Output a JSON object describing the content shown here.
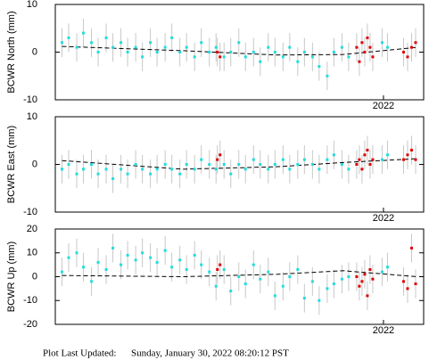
{
  "chart_data": [
    {
      "type": "scatter",
      "ylabel": "BCWR North (mm)",
      "xlim": [
        2019.55,
        2022.3
      ],
      "xticks": [
        {
          "value": 2022,
          "label": "2022"
        }
      ],
      "ylim": [
        -10,
        10
      ],
      "yticks": [
        -10,
        0,
        10
      ],
      "series": [
        {
          "color": "#22dddd",
          "error": 3,
          "x": [
            2019.6,
            2019.65,
            2019.71,
            2019.76,
            2019.82,
            2019.87,
            2019.93,
            2019.98,
            2020.04,
            2020.09,
            2020.15,
            2020.2,
            2020.26,
            2020.31,
            2020.37,
            2020.42,
            2020.48,
            2020.53,
            2020.59,
            2020.64,
            2020.7,
            2020.75,
            2020.81,
            2020.86,
            2020.92,
            2020.97,
            2021.03,
            2021.08,
            2021.14,
            2021.19,
            2021.25,
            2021.3,
            2021.36,
            2021.41,
            2021.47,
            2021.52,
            2021.58,
            2021.63,
            2021.69,
            2021.74,
            2021.99,
            2022.03
          ],
          "values": [
            2,
            3,
            1,
            4,
            2,
            0,
            3,
            1,
            2,
            0,
            1,
            -1,
            2,
            0,
            1,
            3,
            0,
            1,
            -1,
            2,
            0,
            1,
            -1,
            0,
            2,
            -1,
            0,
            -2,
            1,
            0,
            -1,
            1,
            -2,
            0,
            -1,
            -3,
            -5,
            0,
            1,
            -1,
            2,
            1
          ]
        },
        {
          "color": "#dd0000",
          "error": 3,
          "x": [
            2020.76,
            2020.78,
            2021.8,
            2021.82,
            2021.84,
            2021.86,
            2021.88,
            2021.9,
            2021.92,
            2022.15,
            2022.18,
            2022.21,
            2022.24
          ],
          "values": [
            0,
            -1,
            1,
            -2,
            2,
            0,
            3,
            1,
            -1,
            0,
            -1,
            1,
            2
          ]
        },
        {
          "color": "#000000",
          "dashed": true,
          "x": [
            2019.6,
            2020.5,
            2021.2,
            2021.7,
            2022.25
          ],
          "values": [
            1.2,
            0.3,
            -0.6,
            -0.5,
            1.0
          ]
        }
      ]
    },
    {
      "type": "scatter",
      "ylabel": "BCWR East (mm)",
      "xlim": [
        2019.55,
        2022.3
      ],
      "xticks": [
        {
          "value": 2022,
          "label": "2022"
        }
      ],
      "ylim": [
        -10,
        10
      ],
      "yticks": [
        -10,
        0,
        10
      ],
      "series": [
        {
          "color": "#22dddd",
          "error": 3,
          "x": [
            2019.6,
            2019.65,
            2019.71,
            2019.76,
            2019.82,
            2019.87,
            2019.93,
            2019.98,
            2020.04,
            2020.09,
            2020.15,
            2020.2,
            2020.26,
            2020.31,
            2020.37,
            2020.42,
            2020.48,
            2020.53,
            2020.59,
            2020.64,
            2020.7,
            2020.75,
            2020.81,
            2020.86,
            2020.92,
            2020.97,
            2021.03,
            2021.08,
            2021.14,
            2021.19,
            2021.25,
            2021.3,
            2021.36,
            2021.41,
            2021.47,
            2021.52,
            2021.58,
            2021.63,
            2021.69,
            2021.74,
            2021.99,
            2022.03
          ],
          "values": [
            -1,
            0,
            -2,
            -1,
            0,
            -2,
            -1,
            -3,
            -1,
            -2,
            0,
            -1,
            -2,
            -1,
            0,
            -1,
            -2,
            0,
            -1,
            1,
            0,
            -1,
            0,
            -2,
            0,
            -1,
            1,
            0,
            -1,
            0,
            1,
            -1,
            0,
            1,
            0,
            -1,
            1,
            2,
            0,
            -1,
            1,
            2
          ]
        },
        {
          "color": "#dd0000",
          "error": 3,
          "x": [
            2020.76,
            2020.78,
            2021.8,
            2021.82,
            2021.84,
            2021.86,
            2021.88,
            2021.9,
            2021.92,
            2022.15,
            2022.18,
            2022.21,
            2022.24
          ],
          "values": [
            1,
            2,
            0,
            1,
            -1,
            2,
            3,
            0,
            1,
            1,
            2,
            3,
            1
          ]
        },
        {
          "color": "#000000",
          "dashed": true,
          "x": [
            2019.6,
            2020.5,
            2021.2,
            2021.7,
            2022.25
          ],
          "values": [
            0.8,
            -1,
            -0.5,
            0.4,
            1.2
          ]
        }
      ]
    },
    {
      "type": "scatter",
      "ylabel": "BCWR Up (mm)",
      "xlim": [
        2019.55,
        2022.3
      ],
      "xticks": [
        {
          "value": 2022,
          "label": "2022"
        }
      ],
      "ylim": [
        -20,
        20
      ],
      "yticks": [
        -20,
        -10,
        0,
        10,
        20
      ],
      "series": [
        {
          "color": "#22dddd",
          "error": 6,
          "x": [
            2019.6,
            2019.65,
            2019.71,
            2019.76,
            2019.82,
            2019.87,
            2019.93,
            2019.98,
            2020.04,
            2020.09,
            2020.15,
            2020.2,
            2020.26,
            2020.31,
            2020.37,
            2020.42,
            2020.48,
            2020.53,
            2020.59,
            2020.64,
            2020.7,
            2020.75,
            2020.81,
            2020.86,
            2020.92,
            2020.97,
            2021.03,
            2021.08,
            2021.14,
            2021.19,
            2021.25,
            2021.3,
            2021.36,
            2021.41,
            2021.47,
            2021.52,
            2021.58,
            2021.63,
            2021.69,
            2021.74,
            2021.99,
            2022.03
          ],
          "values": [
            2,
            8,
            10,
            4,
            -2,
            6,
            3,
            12,
            5,
            9,
            7,
            10,
            8,
            6,
            11,
            4,
            7,
            3,
            9,
            5,
            2,
            -4,
            3,
            -6,
            0,
            -3,
            5,
            -1,
            2,
            -8,
            -4,
            0,
            3,
            -9,
            -2,
            -10,
            -5,
            -3,
            -1,
            0,
            2,
            4
          ]
        },
        {
          "color": "#dd0000",
          "error": 6,
          "x": [
            2020.76,
            2020.78,
            2021.8,
            2021.82,
            2021.84,
            2021.86,
            2021.88,
            2021.9,
            2021.92,
            2022.15,
            2022.18,
            2022.21,
            2022.24
          ],
          "values": [
            3,
            5,
            0,
            -4,
            -2,
            1,
            -8,
            3,
            -1,
            -2,
            -5,
            12,
            -3
          ]
        },
        {
          "color": "#000000",
          "dashed": true,
          "x": [
            2019.6,
            2020.5,
            2021.2,
            2021.7,
            2022.25
          ],
          "values": [
            0.5,
            0,
            1,
            2.5,
            0
          ]
        }
      ]
    }
  ],
  "footer": {
    "label": "Plot Last Updated:",
    "date": "Sunday, January 30, 2022 08:20:12 PST"
  }
}
